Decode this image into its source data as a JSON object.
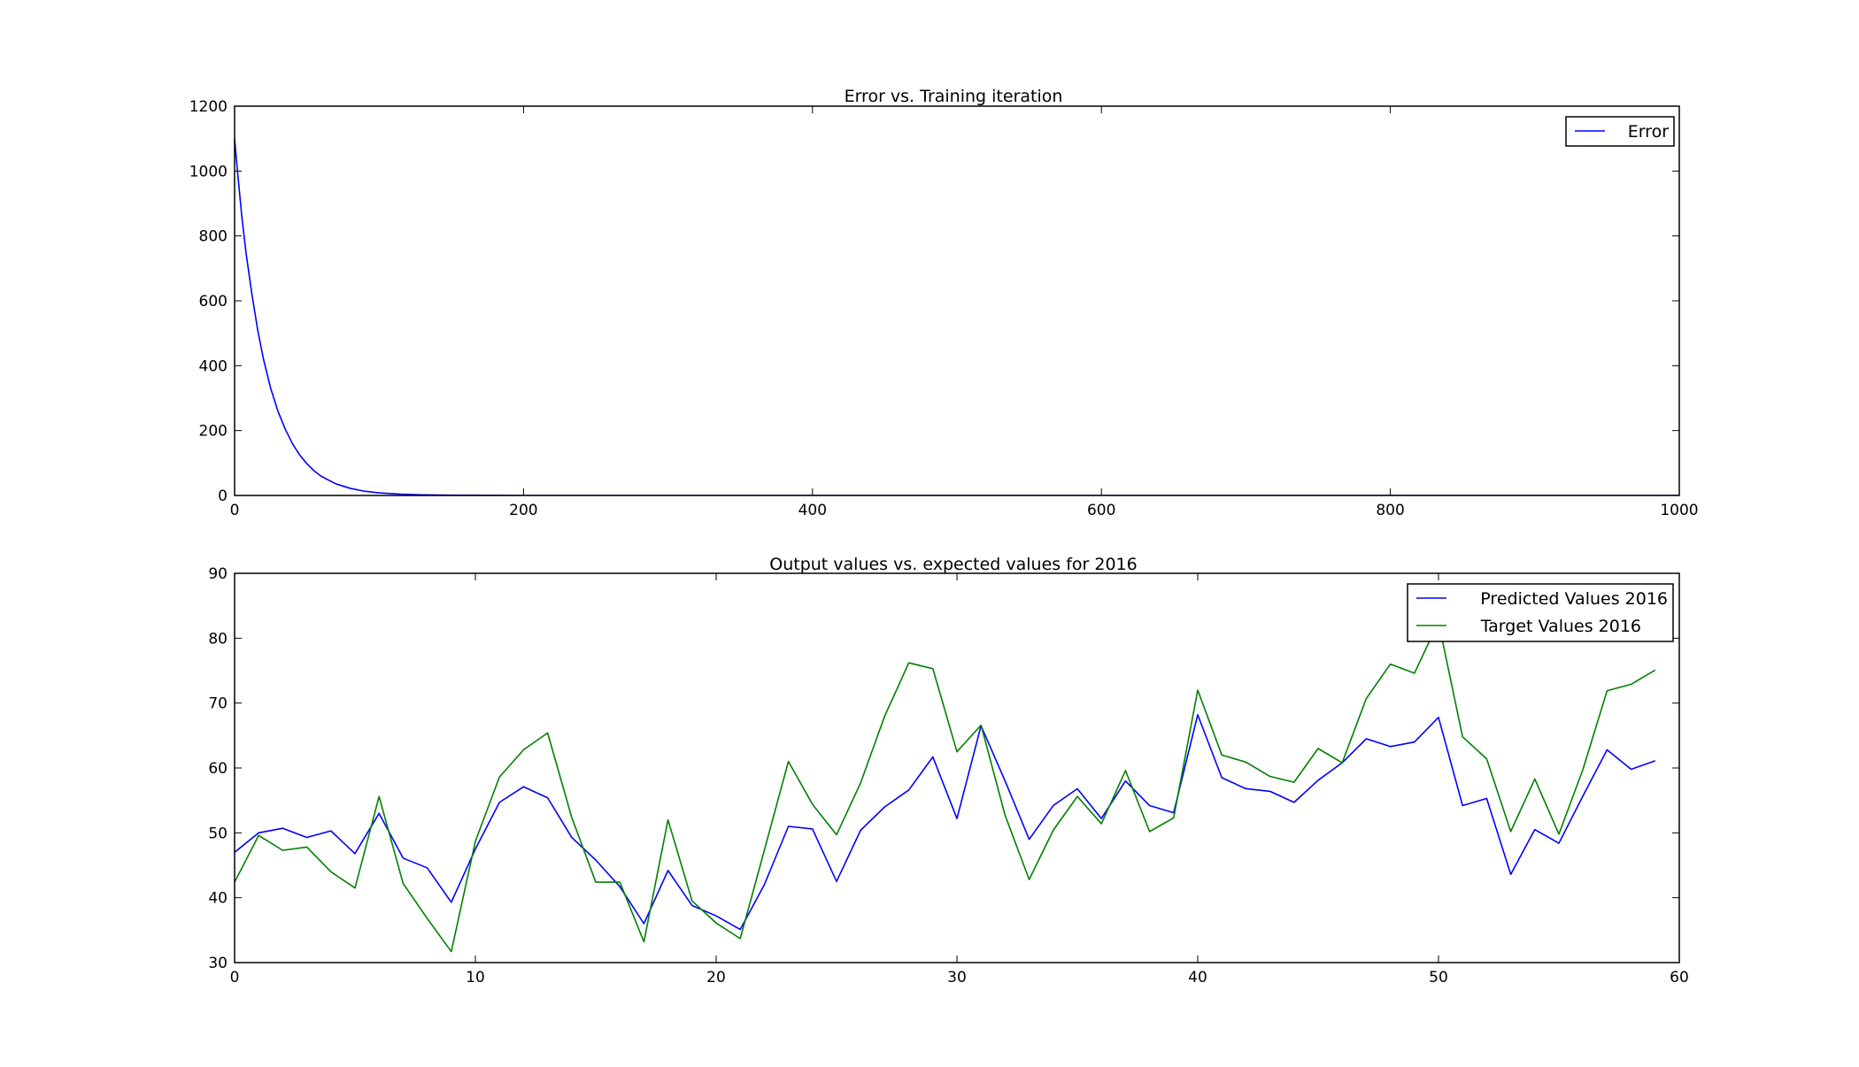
{
  "chart_data": [
    {
      "type": "line",
      "title": "Error vs. Training iteration",
      "xlabel": "",
      "ylabel": "",
      "xlim": [
        0,
        1000
      ],
      "ylim": [
        0,
        1200
      ],
      "xticks": [
        0,
        200,
        400,
        600,
        800,
        1000
      ],
      "yticks": [
        0,
        200,
        400,
        600,
        800,
        1000,
        1200
      ],
      "grid": false,
      "legend_position": "top-right",
      "series": [
        {
          "name": "Error",
          "color": "#0000ff",
          "x": [
            0,
            2,
            5,
            8,
            12,
            16,
            20,
            25,
            30,
            35,
            40,
            45,
            50,
            55,
            60,
            70,
            80,
            90,
            100,
            115,
            130,
            150,
            175,
            200,
            300,
            400,
            500,
            600,
            700,
            800,
            900,
            1000
          ],
          "y": [
            1100,
            1000,
            860,
            745,
            620,
            510,
            420,
            330,
            260,
            205,
            160,
            125,
            98,
            76,
            59,
            36,
            22,
            13,
            8,
            4,
            2,
            1,
            0.5,
            0,
            0,
            0,
            0,
            0,
            0,
            0,
            0,
            0
          ]
        }
      ]
    },
    {
      "type": "line",
      "title": "Output values vs. expected values for 2016",
      "xlabel": "",
      "ylabel": "",
      "xlim": [
        0,
        60
      ],
      "ylim": [
        30,
        90
      ],
      "xticks": [
        0,
        10,
        20,
        30,
        40,
        50,
        60
      ],
      "yticks": [
        30,
        40,
        50,
        60,
        70,
        80,
        90
      ],
      "grid": false,
      "legend_position": "top-right",
      "series": [
        {
          "name": "Predicted Values 2016",
          "color": "#0000ff",
          "y": [
            47,
            50,
            50.7,
            49.3,
            50.3,
            46.8,
            53,
            46.1,
            44.6,
            39.3,
            47.5,
            54.7,
            57.1,
            55.4,
            49.3,
            45.8,
            41.7,
            36,
            44.2,
            38.8,
            37.2,
            35.1,
            42,
            51,
            50.6,
            42.5,
            50.4,
            54,
            56.6,
            61.7,
            52.2,
            66.5,
            58,
            49,
            54.2,
            56.8,
            52.2,
            58,
            54.2,
            53.1,
            68.2,
            58.5,
            56.8,
            56.4,
            54.7,
            58.1,
            60.8,
            64.5,
            63.3,
            64,
            67.8,
            54.2,
            55.3,
            43.6,
            50.5,
            48.4,
            55.7,
            62.8,
            59.8,
            61.1
          ]
        },
        {
          "name": "Target Values 2016",
          "color": "#008000",
          "y": [
            42.4,
            49.6,
            47.3,
            47.8,
            44,
            41.5,
            55.6,
            42.2,
            36.8,
            31.7,
            48.7,
            58.6,
            62.8,
            65.4,
            52.4,
            42.4,
            42.4,
            33.2,
            52,
            39.5,
            36.1,
            33.7,
            47.3,
            61,
            54.4,
            49.7,
            57.7,
            68,
            76.2,
            75.3,
            62.5,
            66.6,
            52.7,
            42.8,
            50.4,
            55.6,
            51.4,
            59.6,
            50.2,
            52.3,
            72,
            62,
            60.9,
            58.7,
            57.8,
            63,
            60.8,
            70.7,
            76,
            74.6,
            82.5,
            64.8,
            61.4,
            50.2,
            58.3,
            49.8,
            59.8,
            71.9,
            72.9,
            75.1
          ]
        }
      ]
    }
  ]
}
